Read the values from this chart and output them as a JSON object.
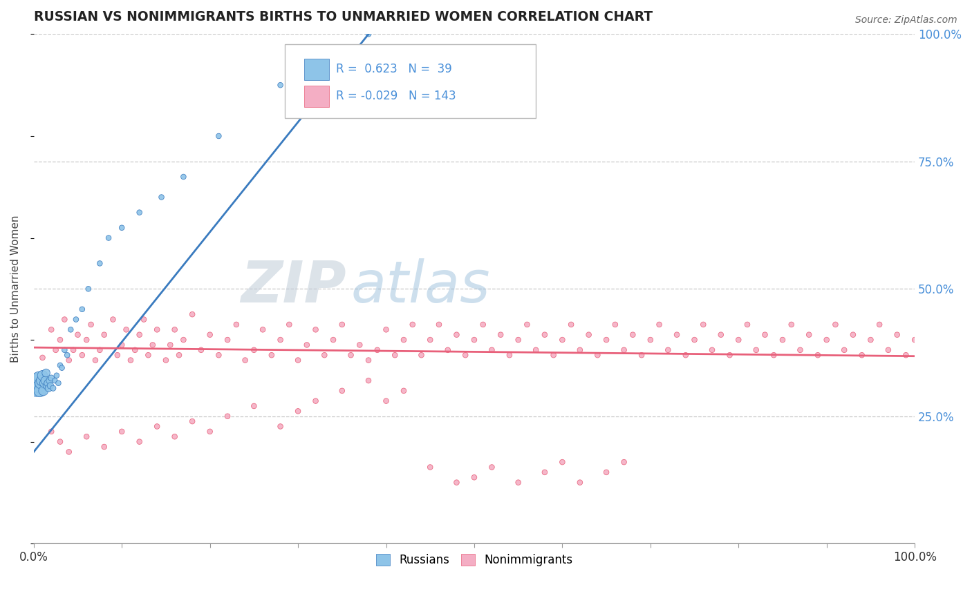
{
  "title": "RUSSIAN VS NONIMMIGRANTS BIRTHS TO UNMARRIED WOMEN CORRELATION CHART",
  "source": "Source: ZipAtlas.com",
  "ylabel": "Births to Unmarried Women",
  "legend_blue_r": "0.623",
  "legend_blue_n": "39",
  "legend_pink_r": "-0.029",
  "legend_pink_n": "143",
  "legend_blue_label": "Russians",
  "legend_pink_label": "Nonimmigrants",
  "blue_color": "#8ec4e8",
  "pink_color": "#f4aec4",
  "blue_line_color": "#3a7bbf",
  "pink_line_color": "#e8607a",
  "right_tick_color": "#4a90d9",
  "background_color": "#ffffff",
  "grid_color": "#c8c8c8",
  "watermark_zip_color": "#c8d8e8",
  "watermark_atlas_color": "#90b8d8",
  "russians": {
    "x": [
      0.003,
      0.004,
      0.005,
      0.006,
      0.007,
      0.008,
      0.009,
      0.01,
      0.011,
      0.012,
      0.013,
      0.014,
      0.015,
      0.016,
      0.017,
      0.018,
      0.019,
      0.02,
      0.022,
      0.024,
      0.026,
      0.028,
      0.03,
      0.032,
      0.035,
      0.038,
      0.042,
      0.048,
      0.055,
      0.062,
      0.075,
      0.085,
      0.1,
      0.12,
      0.145,
      0.17,
      0.21,
      0.28,
      0.38
    ],
    "y": [
      0.305,
      0.32,
      0.31,
      0.325,
      0.3,
      0.315,
      0.32,
      0.33,
      0.3,
      0.315,
      0.32,
      0.335,
      0.31,
      0.315,
      0.305,
      0.32,
      0.31,
      0.325,
      0.305,
      0.32,
      0.33,
      0.315,
      0.35,
      0.345,
      0.38,
      0.37,
      0.42,
      0.44,
      0.46,
      0.5,
      0.55,
      0.6,
      0.62,
      0.65,
      0.68,
      0.72,
      0.8,
      0.9,
      1.0
    ],
    "sizes": [
      300,
      250,
      200,
      180,
      160,
      140,
      120,
      110,
      100,
      90,
      80,
      70,
      65,
      60,
      55,
      50,
      45,
      40,
      35,
      30,
      30,
      30,
      30,
      30,
      30,
      30,
      30,
      30,
      30,
      30,
      30,
      30,
      30,
      30,
      30,
      30,
      30,
      30,
      30
    ]
  },
  "nonimmigrants": {
    "x": [
      0.01,
      0.02,
      0.025,
      0.03,
      0.035,
      0.04,
      0.045,
      0.05,
      0.055,
      0.06,
      0.065,
      0.07,
      0.075,
      0.08,
      0.09,
      0.095,
      0.1,
      0.105,
      0.11,
      0.115,
      0.12,
      0.125,
      0.13,
      0.135,
      0.14,
      0.15,
      0.155,
      0.16,
      0.165,
      0.17,
      0.18,
      0.19,
      0.2,
      0.21,
      0.22,
      0.23,
      0.24,
      0.25,
      0.26,
      0.27,
      0.28,
      0.29,
      0.3,
      0.31,
      0.32,
      0.33,
      0.34,
      0.35,
      0.36,
      0.37,
      0.38,
      0.39,
      0.4,
      0.41,
      0.42,
      0.43,
      0.44,
      0.45,
      0.46,
      0.47,
      0.48,
      0.49,
      0.5,
      0.51,
      0.52,
      0.53,
      0.54,
      0.55,
      0.56,
      0.57,
      0.58,
      0.59,
      0.6,
      0.61,
      0.62,
      0.63,
      0.64,
      0.65,
      0.66,
      0.67,
      0.68,
      0.69,
      0.7,
      0.71,
      0.72,
      0.73,
      0.74,
      0.75,
      0.76,
      0.77,
      0.78,
      0.79,
      0.8,
      0.81,
      0.82,
      0.83,
      0.84,
      0.85,
      0.86,
      0.87,
      0.88,
      0.89,
      0.9,
      0.91,
      0.92,
      0.93,
      0.94,
      0.95,
      0.96,
      0.97,
      0.98,
      0.99,
      1.0,
      0.02,
      0.03,
      0.04,
      0.06,
      0.08,
      0.1,
      0.12,
      0.14,
      0.16,
      0.18,
      0.2,
      0.22,
      0.25,
      0.28,
      0.3,
      0.32,
      0.35,
      0.38,
      0.4,
      0.42,
      0.45,
      0.48,
      0.5,
      0.52,
      0.55,
      0.58,
      0.6,
      0.62,
      0.65,
      0.67
    ],
    "y": [
      0.365,
      0.42,
      0.38,
      0.4,
      0.44,
      0.36,
      0.38,
      0.41,
      0.37,
      0.4,
      0.43,
      0.36,
      0.38,
      0.41,
      0.44,
      0.37,
      0.39,
      0.42,
      0.36,
      0.38,
      0.41,
      0.44,
      0.37,
      0.39,
      0.42,
      0.36,
      0.39,
      0.42,
      0.37,
      0.4,
      0.45,
      0.38,
      0.41,
      0.37,
      0.4,
      0.43,
      0.36,
      0.38,
      0.42,
      0.37,
      0.4,
      0.43,
      0.36,
      0.39,
      0.42,
      0.37,
      0.4,
      0.43,
      0.37,
      0.39,
      0.36,
      0.38,
      0.42,
      0.37,
      0.4,
      0.43,
      0.37,
      0.4,
      0.43,
      0.38,
      0.41,
      0.37,
      0.4,
      0.43,
      0.38,
      0.41,
      0.37,
      0.4,
      0.43,
      0.38,
      0.41,
      0.37,
      0.4,
      0.43,
      0.38,
      0.41,
      0.37,
      0.4,
      0.43,
      0.38,
      0.41,
      0.37,
      0.4,
      0.43,
      0.38,
      0.41,
      0.37,
      0.4,
      0.43,
      0.38,
      0.41,
      0.37,
      0.4,
      0.43,
      0.38,
      0.41,
      0.37,
      0.4,
      0.43,
      0.38,
      0.41,
      0.37,
      0.4,
      0.43,
      0.38,
      0.41,
      0.37,
      0.4,
      0.43,
      0.38,
      0.41,
      0.37,
      0.4,
      0.22,
      0.2,
      0.18,
      0.21,
      0.19,
      0.22,
      0.2,
      0.23,
      0.21,
      0.24,
      0.22,
      0.25,
      0.27,
      0.23,
      0.26,
      0.28,
      0.3,
      0.32,
      0.28,
      0.3,
      0.15,
      0.12,
      0.13,
      0.15,
      0.12,
      0.14,
      0.16,
      0.12,
      0.14,
      0.16
    ],
    "sizes": [
      30,
      30,
      30,
      30,
      30,
      30,
      30,
      30,
      30,
      30,
      30,
      30,
      30,
      30,
      30,
      30,
      30,
      30,
      30,
      30,
      30,
      30,
      30,
      30,
      30,
      30,
      30,
      30,
      30,
      30,
      30,
      30,
      30,
      30,
      30,
      30,
      30,
      30,
      30,
      30,
      30,
      30,
      30,
      30,
      30,
      30,
      30,
      30,
      30,
      30,
      30,
      30,
      30,
      30,
      30,
      30,
      30,
      30,
      30,
      30,
      30,
      30,
      30,
      30,
      30,
      30,
      30,
      30,
      30,
      30,
      30,
      30,
      30,
      30,
      30,
      30,
      30,
      30,
      30,
      30,
      30,
      30,
      30,
      30,
      30,
      30,
      30,
      30,
      30,
      30,
      30,
      30,
      30,
      30,
      30,
      30,
      30,
      30,
      30,
      30,
      30,
      30,
      30,
      30,
      30,
      30,
      30,
      30,
      30,
      30,
      30,
      30,
      30,
      30,
      30,
      30,
      30,
      30,
      30,
      30,
      30,
      30,
      30,
      30,
      30,
      30,
      30,
      30,
      30,
      30,
      30,
      30,
      30,
      30,
      30,
      30,
      30,
      30,
      30,
      30,
      30,
      30,
      30
    ]
  },
  "blue_line": {
    "x0": 0.0,
    "y0": 0.18,
    "x1": 0.38,
    "y1": 1.0
  },
  "pink_line": {
    "x0": 0.0,
    "y0": 0.385,
    "x1": 1.0,
    "y1": 0.368
  },
  "xlim": [
    0.0,
    1.0
  ],
  "ylim": [
    0.0,
    1.0
  ],
  "yticks": [
    0.25,
    0.5,
    0.75,
    1.0
  ],
  "ytick_labels": [
    "25.0%",
    "50.0%",
    "75.0%",
    "100.0%"
  ]
}
